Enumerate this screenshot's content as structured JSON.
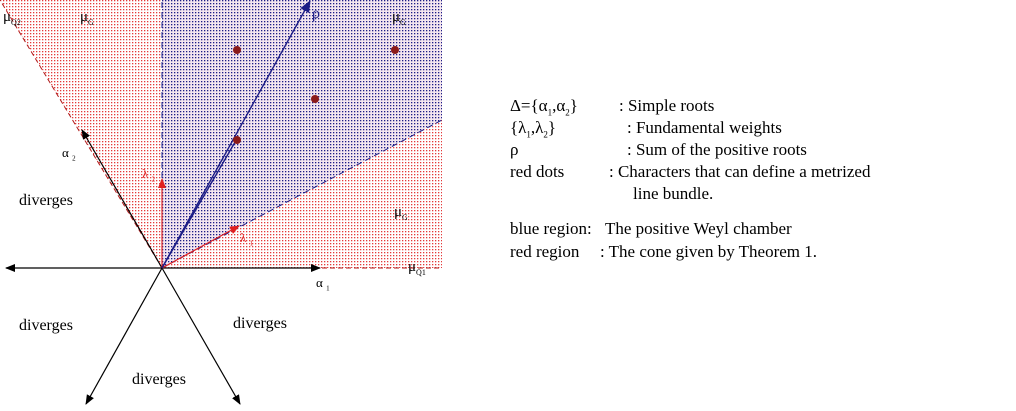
{
  "diagram": {
    "colors": {
      "red_region": "#e43a3a",
      "blue_region": "#1c1c86",
      "dots": "#8a1a1a",
      "weights": "#e02020",
      "rho_vector": "#1c1c86",
      "axes": "#000000"
    },
    "labels": {
      "mu_q2": "μQ2",
      "mu_g_top_left": "μG",
      "mu_g_top_right": "μG",
      "mu_g_right": "μG",
      "mu_q1": "μQ1",
      "rho": "ρ",
      "alpha1": "α 1",
      "alpha2": "α 2",
      "lambda1": "λ 1",
      "lambda2": "λ 2",
      "diverges_left": "diverges",
      "diverges_lower_left": "diverges",
      "diverges_lower_right": "diverges",
      "diverges_bottom": "diverges"
    }
  },
  "legend": {
    "items": [
      {
        "symbol": "Δ={α1,α2}",
        "desc": ": Simple roots"
      },
      {
        "symbol": "{λ1,λ2}",
        "desc": ": Fundamental weights"
      },
      {
        "symbol": "ρ",
        "desc": ": Sum of the positive roots"
      },
      {
        "symbol": "red dots",
        "desc": ": Characters that can define a metrized"
      },
      {
        "symbol": "",
        "desc": "line bundle."
      },
      {
        "symbol": "blue region:",
        "desc": "The positive Weyl chamber"
      },
      {
        "symbol": "red region",
        "desc": ": The cone given by Theorem 1."
      }
    ]
  }
}
